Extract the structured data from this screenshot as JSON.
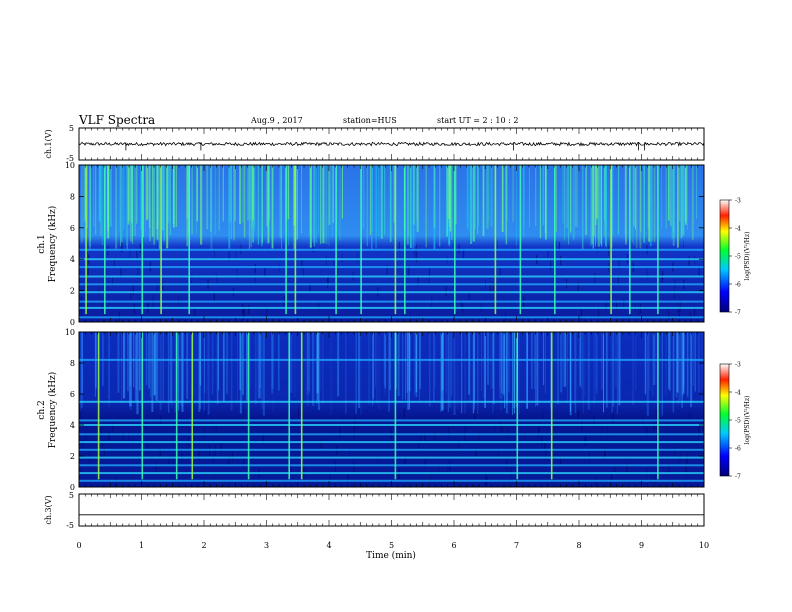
{
  "header": {
    "title": "VLF Spectra",
    "date": "Aug.9  , 2017",
    "station": "station=HUS",
    "start_ut": "start  UT  =   2  : 10 : 2"
  },
  "chart_data": [
    {
      "type": "line",
      "panel": "ch1-waveform",
      "ylabel": "ch.1(V)",
      "yticks": [
        "5",
        "-5"
      ],
      "ylim": [
        -5,
        5
      ],
      "xlim": [
        0,
        10
      ],
      "description_value": "noisy waveform centered near 0 V with occasional spikes"
    },
    {
      "type": "heatmap",
      "panel": "ch1-spectrogram",
      "ylabel_line1": "ch.1",
      "ylabel_line2": "Frequency  (kHz)",
      "yticks": [
        "0",
        "2",
        "4",
        "6",
        "8",
        "10"
      ],
      "ylim": [
        0,
        10
      ],
      "xlim": [
        0,
        10
      ],
      "colorbar": {
        "label": "log(PSD)(V²/Hz)",
        "ticks": [
          "-3",
          "-4",
          "-5",
          "-6",
          "-7"
        ],
        "range": [
          -7,
          -3
        ]
      },
      "bright_bursts_min": [
        0.1,
        0.4,
        1.0,
        1.3,
        1.75,
        3.3,
        3.45,
        4.1,
        4.5,
        5.05,
        5.2,
        6.0,
        6.65,
        7.05,
        7.6,
        8.5,
        8.8,
        9.25
      ],
      "band_lines_khz": [
        0.3,
        0.9,
        1.3,
        1.9,
        2.4,
        2.9,
        3.5,
        4.0,
        4.6
      ]
    },
    {
      "type": "heatmap",
      "panel": "ch2-spectrogram",
      "ylabel_line1": "ch.2",
      "ylabel_line2": "Frequency  (kHz)",
      "yticks": [
        "0",
        "2",
        "4",
        "6",
        "8",
        "10"
      ],
      "ylim": [
        0,
        10
      ],
      "xlim": [
        0,
        10
      ],
      "colorbar": {
        "label": "log(PSD)(V²/Hz)",
        "ticks": [
          "-3",
          "-4",
          "-5",
          "-6",
          "-7"
        ],
        "range": [
          -7,
          -3
        ]
      },
      "bright_bursts_min": [
        0.3,
        1.0,
        1.55,
        1.8,
        2.7,
        3.35,
        3.55,
        5.05,
        7.0,
        7.55,
        9.25
      ],
      "band_lines_khz": [
        0.4,
        0.9,
        1.4,
        1.9,
        2.4,
        2.9,
        3.4,
        4.0,
        4.3,
        5.5,
        8.2
      ]
    },
    {
      "type": "line",
      "panel": "ch3-waveform",
      "ylabel": "ch.3(V)",
      "yticks": [
        "5",
        "-5"
      ],
      "ylim": [
        -5,
        5
      ],
      "xlim": [
        0,
        10
      ],
      "y_constant": -1.5
    }
  ],
  "xaxis": {
    "label": "Time  (min)",
    "ticks": [
      "0",
      "1",
      "2",
      "3",
      "4",
      "5",
      "6",
      "7",
      "8",
      "9",
      "10"
    ]
  }
}
